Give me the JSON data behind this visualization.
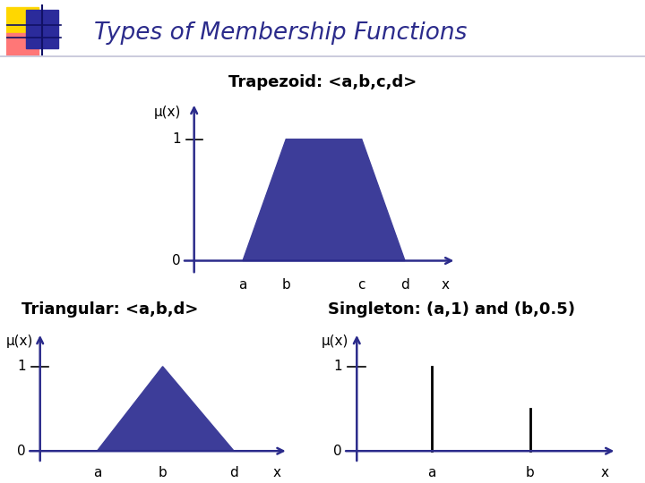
{
  "title": "Types of Membership Functions",
  "title_color": "#2B2B8B",
  "bg_color": "#FFFFFF",
  "trapezoid_label": "Trapezoid: <a,b,c,d>",
  "triangular_label": "Triangular: <a,b,d>",
  "singleton_label": "Singleton: (a,1) and (b,0.5)",
  "mu_label": "μ(x)",
  "fill_color": "#3D3D99",
  "axis_color": "#2B2B8B",
  "label_fontsize": 11,
  "sublabel_fontsize": 13,
  "logo_yellow": "#FFD700",
  "logo_red": "#FF7777",
  "logo_blue": "#2B2B9B",
  "logo_dark": "#111166"
}
